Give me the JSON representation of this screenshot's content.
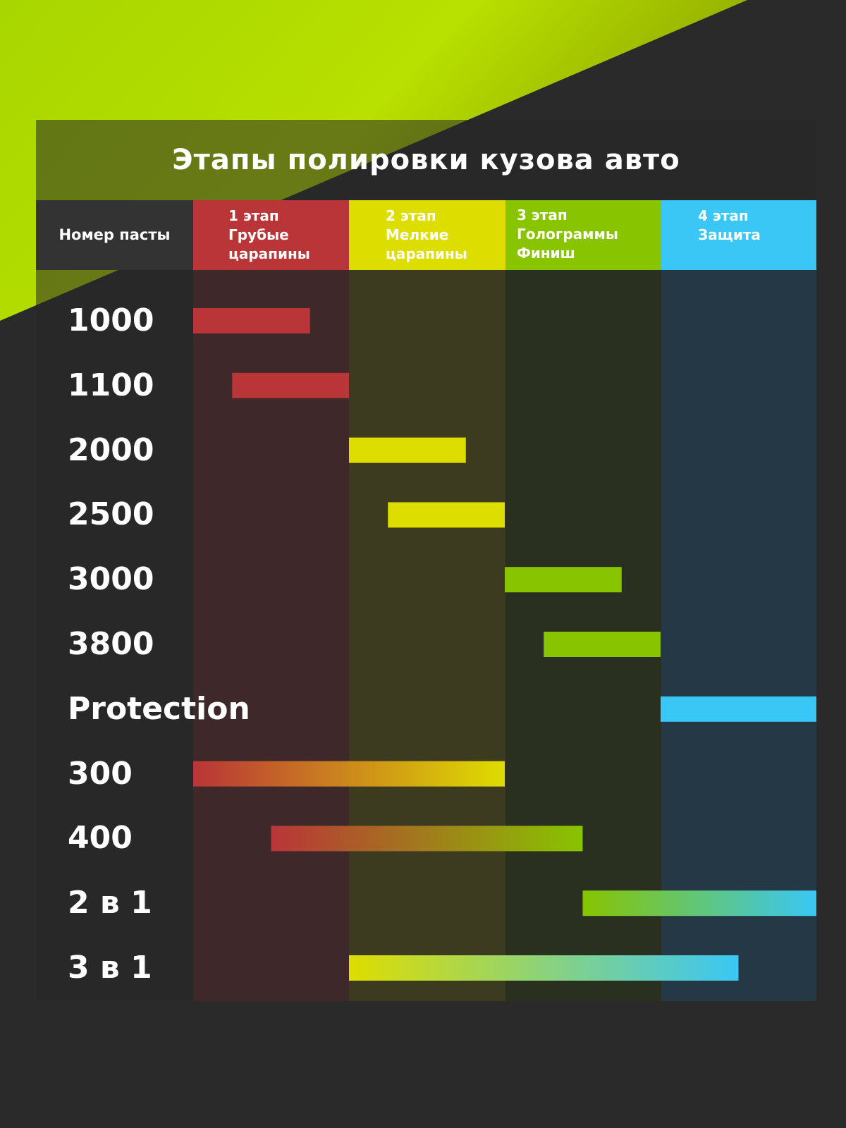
{
  "chart_data": {
    "type": "bar",
    "title": "Этапы полировки кузова авто",
    "header_label": "Номер пасты",
    "stages": [
      {
        "lines": [
          "1 этап",
          "Грубые",
          "царапины"
        ],
        "color": "#b93538",
        "band_color": "#3e2829"
      },
      {
        "lines": [
          "2 этап",
          "Мелкие",
          "царапины"
        ],
        "color": "#dedd00",
        "band_color": "#3c3a1f"
      },
      {
        "lines": [
          "3 этап",
          "Голограммы",
          "Финиш"
        ],
        "color": "#88c400",
        "band_color": "#2a3020"
      },
      {
        "lines": [
          "4 этап",
          "Защита"
        ],
        "color": "#3ac7f5",
        "band_color": "#243846"
      }
    ],
    "x_range": [
      0,
      4
    ],
    "rows": [
      {
        "label": "1000",
        "start": 0.0,
        "end": 0.75
      },
      {
        "label": "1100",
        "start": 0.25,
        "end": 1.0
      },
      {
        "label": "2000",
        "start": 1.0,
        "end": 1.75
      },
      {
        "label": "2500",
        "start": 1.25,
        "end": 2.0
      },
      {
        "label": "3000",
        "start": 2.0,
        "end": 2.75
      },
      {
        "label": "3800",
        "start": 2.25,
        "end": 3.0
      },
      {
        "label": "Protection",
        "start": 3.0,
        "end": 4.0
      },
      {
        "label": "300",
        "start": 0.0,
        "end": 2.0
      },
      {
        "label": "400",
        "start": 0.5,
        "end": 2.5
      },
      {
        "label": "2 в 1",
        "start": 2.5,
        "end": 4.0
      },
      {
        "label": "3 в 1",
        "start": 1.0,
        "end": 3.5
      }
    ]
  },
  "colors": {
    "background": "#2a2a2a",
    "accent_green": "#b6e000"
  }
}
